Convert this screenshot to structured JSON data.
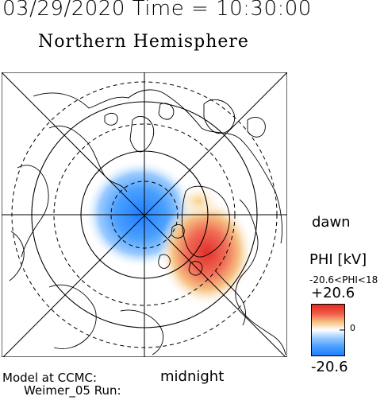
{
  "header": {
    "datetime": "03/29/2020 Time = 10:30:00"
  },
  "map": {
    "title": "Northern Hemisphere",
    "dawn_label": "dawn",
    "midnight_label": "midnight",
    "projection": "polar stereographic",
    "latitude_rings": "dashed circles",
    "background": "#ffffff",
    "coast_color": "#000000"
  },
  "colorbar": {
    "title": "PHI [kV]",
    "range_text": "-20.6<PHI<18",
    "max_label": "+20.6",
    "zero_label": "0",
    "min_label": "-20.6",
    "colors": {
      "positive": "#e23a2e",
      "negative": "#2b8cff",
      "neutral": "#ffffff"
    }
  },
  "footer": {
    "model_label": "Model at CCMC:",
    "run_label": "Weimer_05 Run:"
  }
}
